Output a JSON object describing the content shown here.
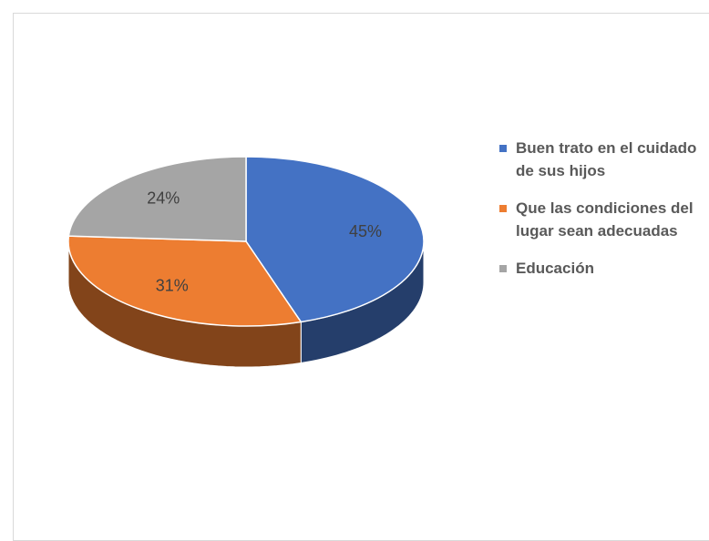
{
  "chart_data": {
    "type": "pie",
    "categories": [
      "Buen trato en el cuidado de sus hijos",
      "Que las condiciones del lugar sean adecuadas",
      "Educación"
    ],
    "values": [
      45,
      31,
      24
    ],
    "value_labels": [
      "45%",
      "31%",
      "24%"
    ],
    "colors": [
      "#4472c4",
      "#ed7d31",
      "#a5a5a5"
    ],
    "legend": "right"
  }
}
